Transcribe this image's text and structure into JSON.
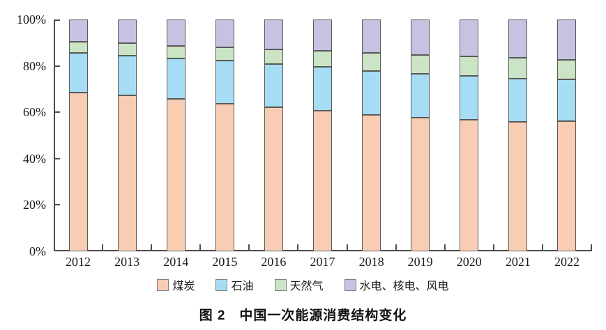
{
  "figure": {
    "caption": "图 2　中国一次能源消费结构变化"
  },
  "chart_data": {
    "type": "bar",
    "stacked": true,
    "title": "图 2　中国一次能源消费结构变化",
    "xlabel": "",
    "ylabel": "",
    "categories": [
      "2012",
      "2013",
      "2014",
      "2015",
      "2016",
      "2017",
      "2018",
      "2019",
      "2020",
      "2021",
      "2022"
    ],
    "series": [
      {
        "name": "煤炭",
        "color": "#f9cdb4",
        "values": [
          68.5,
          67.4,
          65.8,
          63.8,
          62.2,
          60.6,
          59.0,
          57.7,
          56.9,
          56.0,
          56.2
        ]
      },
      {
        "name": "石油",
        "color": "#a6ddf4",
        "values": [
          17.0,
          17.1,
          17.3,
          18.4,
          18.7,
          18.9,
          18.9,
          19.0,
          18.8,
          18.5,
          17.9
        ]
      },
      {
        "name": "天然气",
        "color": "#cbe4c5",
        "values": [
          4.8,
          5.3,
          5.6,
          5.8,
          6.1,
          6.9,
          7.6,
          8.0,
          8.4,
          8.9,
          8.4
        ]
      },
      {
        "name": "水电、核电、风电",
        "color": "#c6c2e1",
        "values": [
          9.7,
          10.2,
          11.3,
          12.0,
          13.0,
          13.6,
          14.5,
          15.3,
          15.9,
          16.6,
          17.5
        ]
      }
    ],
    "ylim": [
      0,
      100
    ],
    "ytick_values": [
      0,
      20,
      40,
      60,
      80,
      100
    ],
    "ytick_labels": [
      "0%",
      "20%",
      "40%",
      "60%",
      "80%",
      "100%"
    ],
    "grid": false,
    "legend_position": "bottom",
    "colors": {
      "axis": "#4d4d4d",
      "segment_border": "#595959",
      "text": "#1a1a1a",
      "background": "#ffffff"
    }
  }
}
